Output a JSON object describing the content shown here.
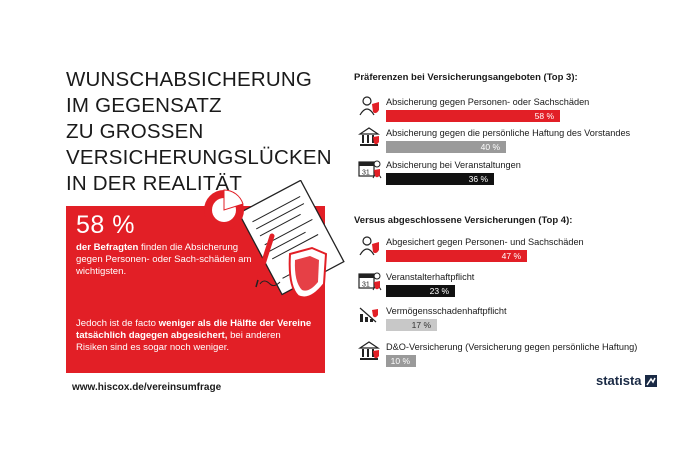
{
  "headline": {
    "lines": [
      "WUNSCHABSICHERUNG",
      "IM GEGENSATZ",
      "ZU GROSSEN",
      "VERSICHERUNGSLÜCKEN",
      "IN DER REALITÄT"
    ]
  },
  "highlight": {
    "percent": "58 %",
    "text_bold": "der Befragten",
    "text_rest": " finden die Absicherung gegen Personen- oder Sach-schäden am wichtigsten.",
    "para2_a": "Jedoch ist de facto ",
    "para2_bold": "weniger als die Hälfte der Vereine tatsächlich dagegen abgesichert,",
    "para2_b": " bei anderen Risiken sind es sogar noch weniger."
  },
  "source_url": "www.hiscox.de/vereinsumfrage",
  "brand": "statista",
  "colors": {
    "red": "#e21f26",
    "black": "#111111",
    "gray": "#c8c8c8"
  },
  "chart_data": [
    {
      "type": "bar",
      "title": "Präferenzen bei Versicherungsangeboten (Top 3):",
      "categories": [
        "Absicherung gegen Personen- oder Sachschäden",
        "Absicherung gegen die persönliche Haftung des Vorstandes",
        "Absicherung bei Veranstaltungen"
      ],
      "values": [
        58,
        40,
        36
      ],
      "value_labels": [
        "58 %",
        "40 %",
        "36 %"
      ],
      "bar_colors": [
        "#e21f26",
        "#9a9a9a",
        "#111111"
      ],
      "icons": [
        "person-damage-icon",
        "building-icon",
        "calendar-icon"
      ]
    },
    {
      "type": "bar",
      "title": "Versus abgeschlossene Versicherungen (Top 4):",
      "categories": [
        "Abgesichert gegen Personen- und Sachschäden",
        "Veranstalterhaftpflicht",
        "Vermögensschadenhaftpflicht",
        "D&O-Versicherung (Versicherung gegen persönliche Haftung)"
      ],
      "values": [
        47,
        23,
        17,
        10
      ],
      "value_labels": [
        "47 %",
        "23 %",
        "17 %",
        "10 %"
      ],
      "bar_colors": [
        "#e21f26",
        "#111111",
        "#c8c8c8",
        "#9a9a9a"
      ],
      "icons": [
        "person-damage-icon",
        "calendar-icon",
        "money-loss-icon",
        "building-icon"
      ]
    }
  ]
}
